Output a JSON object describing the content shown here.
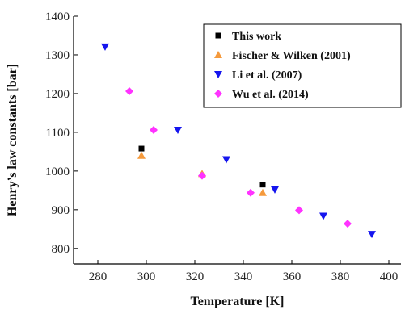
{
  "chart_data": {
    "type": "scatter",
    "title": "",
    "xlabel": "Temperature [K]",
    "ylabel": "Henry’s law constants [bar]",
    "xlim": [
      270,
      405
    ],
    "ylim": [
      760,
      1400
    ],
    "xticks": [
      280,
      300,
      320,
      340,
      360,
      380,
      400
    ],
    "yticks": [
      800,
      900,
      1000,
      1100,
      1200,
      1300,
      1400
    ],
    "grid": false,
    "legend_position": "top-right",
    "series": [
      {
        "name": "This work",
        "marker": "square",
        "color": "#000000",
        "x": [
          298,
          348
        ],
        "y": [
          1058,
          965
        ]
      },
      {
        "name": "Fischer & Wilken (2001)",
        "marker": "triangle-up",
        "color": "#f59a3c",
        "x": [
          298,
          323,
          348
        ],
        "y": [
          1040,
          993,
          944
        ]
      },
      {
        "name": "Li et al. (2007)",
        "marker": "triangle-down",
        "color": "#1515ee",
        "x": [
          283,
          313,
          333,
          353,
          373,
          393
        ],
        "y": [
          1321,
          1106,
          1030,
          952,
          884,
          837
        ]
      },
      {
        "name": "Wu et al. (2014)",
        "marker": "diamond",
        "color": "#ff33ff",
        "x": [
          293,
          303,
          323,
          343,
          363,
          383
        ],
        "y": [
          1206,
          1106,
          988,
          944,
          899,
          864
        ]
      }
    ]
  }
}
